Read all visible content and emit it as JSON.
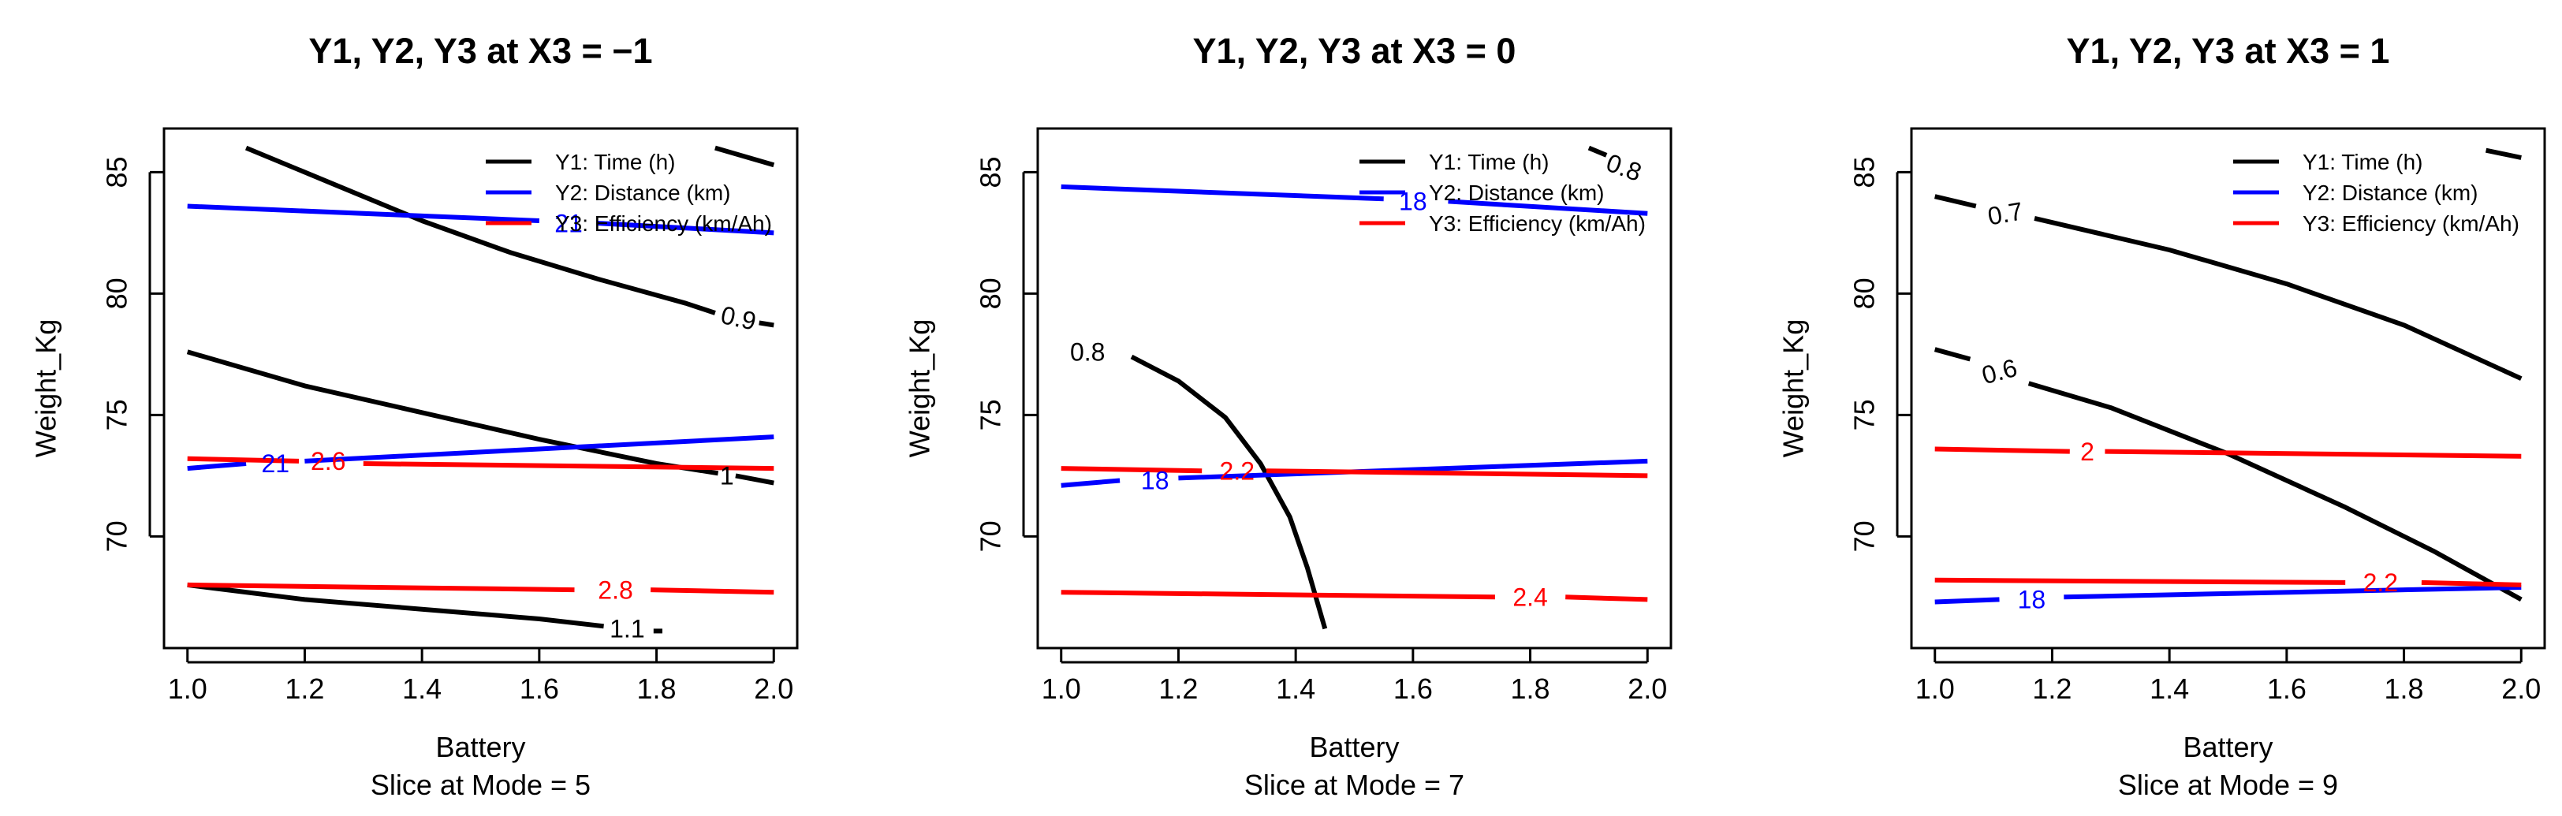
{
  "colors": {
    "y1": "#000000",
    "y2": "#0000ff",
    "y3": "#ff0000"
  },
  "chart_data": [
    {
      "type": "line",
      "title": "Y1, Y2, Y3 at X3 = −1",
      "xlabel": "Battery",
      "subtitle": "Slice at Mode = 5",
      "ylabel": "Weight_Kg",
      "xlim": [
        0.96,
        2.04
      ],
      "ylim": [
        65.4,
        86.8
      ],
      "xticks": [
        "1.0",
        "1.2",
        "1.4",
        "1.6",
        "1.8",
        "2.0"
      ],
      "yticks": [
        "70",
        "75",
        "80",
        "85"
      ],
      "legend": [
        "Y1: Time (h)",
        "Y2: Distance (km)",
        "Y3: Efficiency (km/Ah)"
      ],
      "series": [
        {
          "name": "Y1: Time (h)",
          "color_key": "y1",
          "segments": [
            {
              "points": [
                [
                  1.1,
                  86.0
                ],
                [
                  1.25,
                  84.5
                ],
                [
                  1.4,
                  83.0
                ],
                [
                  1.55,
                  81.7
                ],
                [
                  1.7,
                  80.6
                ],
                [
                  1.85,
                  79.6
                ],
                [
                  1.9,
                  79.2
                ]
              ]
            },
            {
              "points": [
                [
                  1.975,
                  78.8
                ],
                [
                  2.0,
                  78.7
                ]
              ]
            },
            {
              "points": [
                [
                  1.0,
                  77.6
                ],
                [
                  1.2,
                  76.2
                ],
                [
                  1.4,
                  75.1
                ],
                [
                  1.6,
                  74.0
                ],
                [
                  1.8,
                  73.0
                ],
                [
                  1.905,
                  72.6
                ]
              ]
            },
            {
              "points": [
                [
                  1.935,
                  72.5
                ],
                [
                  2.0,
                  72.2
                ]
              ]
            },
            {
              "points": [
                [
                  1.0,
                  68.0
                ],
                [
                  1.2,
                  67.4
                ],
                [
                  1.4,
                  67.0
                ],
                [
                  1.6,
                  66.6
                ],
                [
                  1.71,
                  66.3
                ]
              ]
            },
            {
              "points": [
                [
                  1.795,
                  66.1
                ],
                [
                  1.81,
                  66.1
                ]
              ]
            },
            {
              "points": [
                [
                  1.9,
                  86.0
                ],
                [
                  2.0,
                  85.3
                ]
              ]
            }
          ]
        },
        {
          "name": "Y2: Distance (km)",
          "color_key": "y2",
          "segments": [
            {
              "points": [
                [
                  1.0,
                  83.6
                ],
                [
                  1.5,
                  83.1
                ],
                [
                  1.6,
                  83.0
                ]
              ]
            },
            {
              "points": [
                [
                  1.7,
                  82.9
                ],
                [
                  2.0,
                  82.5
                ]
              ]
            },
            {
              "points": [
                [
                  1.0,
                  72.8
                ],
                [
                  1.1,
                  73.0
                ]
              ]
            },
            {
              "points": [
                [
                  1.2,
                  73.1
                ],
                [
                  1.6,
                  73.6
                ],
                [
                  2.0,
                  74.1
                ]
              ]
            }
          ]
        },
        {
          "name": "Y3: Efficiency (km/Ah)",
          "color_key": "y3",
          "segments": [
            {
              "points": [
                [
                  1.0,
                  73.2
                ],
                [
                  1.19,
                  73.1
                ]
              ]
            },
            {
              "points": [
                [
                  1.3,
                  73.0
                ],
                [
                  2.0,
                  72.8
                ]
              ]
            },
            {
              "points": [
                [
                  1.0,
                  68.0
                ],
                [
                  1.66,
                  67.8
                ]
              ]
            },
            {
              "points": [
                [
                  1.79,
                  67.8
                ],
                [
                  2.0,
                  67.7
                ]
              ]
            }
          ]
        }
      ],
      "contour_labels": [
        {
          "text": "0.9",
          "color_key": "y1",
          "x": 1.94,
          "y": 79.0,
          "angle": 12
        },
        {
          "text": "1",
          "color_key": "y1",
          "x": 1.92,
          "y": 72.5,
          "angle": 0
        },
        {
          "text": "1.1",
          "color_key": "y1",
          "x": 1.75,
          "y": 66.2,
          "angle": 0
        },
        {
          "text": "21",
          "color_key": "y2",
          "x": 1.65,
          "y": 82.9,
          "angle": 0
        },
        {
          "text": "21",
          "color_key": "y2",
          "x": 1.15,
          "y": 73.0,
          "angle": 0
        },
        {
          "text": "2.6",
          "color_key": "y3",
          "x": 1.24,
          "y": 73.1,
          "angle": 0
        },
        {
          "text": "2.8",
          "color_key": "y3",
          "x": 1.73,
          "y": 67.8,
          "angle": 0
        }
      ]
    },
    {
      "type": "line",
      "title": "Y1, Y2, Y3 at X3 = 0",
      "xlabel": "Battery",
      "subtitle": "Slice at Mode = 7",
      "ylabel": "Weight_Kg",
      "xlim": [
        0.96,
        2.04
      ],
      "ylim": [
        65.4,
        86.8
      ],
      "xticks": [
        "1.0",
        "1.2",
        "1.4",
        "1.6",
        "1.8",
        "2.0"
      ],
      "yticks": [
        "70",
        "75",
        "80",
        "85"
      ],
      "legend": [
        "Y1: Time (h)",
        "Y2: Distance (km)",
        "Y3: Efficiency (km/Ah)"
      ],
      "series": [
        {
          "name": "Y1: Time (h)",
          "color_key": "y1",
          "segments": [
            {
              "points": [
                [
                  1.12,
                  77.4
                ],
                [
                  1.2,
                  76.4
                ],
                [
                  1.28,
                  74.9
                ],
                [
                  1.34,
                  73.0
                ],
                [
                  1.39,
                  70.8
                ],
                [
                  1.42,
                  68.7
                ],
                [
                  1.45,
                  66.2
                ]
              ]
            },
            {
              "points": [
                [
                  1.9,
                  86.0
                ],
                [
                  1.93,
                  85.7
                ]
              ]
            }
          ]
        },
        {
          "name": "Y2: Distance (km)",
          "color_key": "y2",
          "segments": [
            {
              "points": [
                [
                  1.0,
                  84.4
                ],
                [
                  1.55,
                  83.9
                ]
              ]
            },
            {
              "points": [
                [
                  1.66,
                  83.8
                ],
                [
                  2.0,
                  83.3
                ]
              ]
            },
            {
              "points": [
                [
                  1.0,
                  72.1
                ],
                [
                  1.1,
                  72.3
                ]
              ]
            },
            {
              "points": [
                [
                  1.2,
                  72.4
                ],
                [
                  2.0,
                  73.1
                ]
              ]
            }
          ]
        },
        {
          "name": "Y3: Efficiency (km/Ah)",
          "color_key": "y3",
          "segments": [
            {
              "points": [
                [
                  1.0,
                  72.8
                ],
                [
                  1.24,
                  72.7
                ]
              ]
            },
            {
              "points": [
                [
                  1.35,
                  72.7
                ],
                [
                  2.0,
                  72.5
                ]
              ]
            },
            {
              "points": [
                [
                  1.0,
                  67.7
                ],
                [
                  1.74,
                  67.5
                ]
              ]
            },
            {
              "points": [
                [
                  1.86,
                  67.5
                ],
                [
                  2.0,
                  67.4
                ]
              ]
            }
          ]
        }
      ],
      "contour_labels": [
        {
          "text": "0.8",
          "color_key": "y1",
          "x": 1.045,
          "y": 77.6,
          "angle": 0
        },
        {
          "text": "0.8",
          "color_key": "y1",
          "x": 1.96,
          "y": 85.2,
          "angle": 20
        },
        {
          "text": "18",
          "color_key": "y2",
          "x": 1.6,
          "y": 83.8,
          "angle": 0
        },
        {
          "text": "18",
          "color_key": "y2",
          "x": 1.16,
          "y": 72.3,
          "angle": 0
        },
        {
          "text": "2.2",
          "color_key": "y3",
          "x": 1.3,
          "y": 72.7,
          "angle": 0
        },
        {
          "text": "2.4",
          "color_key": "y3",
          "x": 1.8,
          "y": 67.5,
          "angle": 0
        }
      ]
    },
    {
      "type": "line",
      "title": "Y1, Y2, Y3 at X3 = 1",
      "xlabel": "Battery",
      "subtitle": "Slice at Mode = 9",
      "ylabel": "Weight_Kg",
      "xlim": [
        0.96,
        2.04
      ],
      "ylim": [
        65.4,
        86.8
      ],
      "xticks": [
        "1.0",
        "1.2",
        "1.4",
        "1.6",
        "1.8",
        "2.0"
      ],
      "yticks": [
        "70",
        "75",
        "80",
        "85"
      ],
      "legend": [
        "Y1: Time (h)",
        "Y2: Distance (km)",
        "Y3: Efficiency (km/Ah)"
      ],
      "series": [
        {
          "name": "Y1: Time (h)",
          "color_key": "y1",
          "segments": [
            {
              "points": [
                [
                  1.0,
                  84.0
                ],
                [
                  1.07,
                  83.6
                ]
              ]
            },
            {
              "points": [
                [
                  1.17,
                  83.1
                ],
                [
                  1.4,
                  81.8
                ],
                [
                  1.6,
                  80.4
                ],
                [
                  1.8,
                  78.7
                ],
                [
                  2.0,
                  76.5
                ]
              ]
            },
            {
              "points": [
                [
                  1.0,
                  77.7
                ],
                [
                  1.06,
                  77.3
                ]
              ]
            },
            {
              "points": [
                [
                  1.16,
                  76.3
                ],
                [
                  1.3,
                  75.3
                ],
                [
                  1.5,
                  73.4
                ],
                [
                  1.7,
                  71.2
                ],
                [
                  1.85,
                  69.4
                ],
                [
                  2.0,
                  67.4
                ]
              ]
            },
            {
              "points": [
                [
                  1.94,
                  85.9
                ],
                [
                  2.0,
                  85.6
                ]
              ]
            }
          ]
        },
        {
          "name": "Y2: Distance (km)",
          "color_key": "y2",
          "segments": [
            {
              "points": [
                [
                  1.0,
                  67.3
                ],
                [
                  1.11,
                  67.4
                ]
              ]
            },
            {
              "points": [
                [
                  1.22,
                  67.5
                ],
                [
                  2.0,
                  67.9
                ]
              ]
            }
          ]
        },
        {
          "name": "Y3: Efficiency (km/Ah)",
          "color_key": "y3",
          "segments": [
            {
              "points": [
                [
                  1.0,
                  73.6
                ],
                [
                  1.23,
                  73.5
                ]
              ]
            },
            {
              "points": [
                [
                  1.29,
                  73.5
                ],
                [
                  2.0,
                  73.3
                ]
              ]
            },
            {
              "points": [
                [
                  1.0,
                  68.2
                ],
                [
                  1.7,
                  68.1
                ]
              ]
            },
            {
              "points": [
                [
                  1.83,
                  68.1
                ],
                [
                  2.0,
                  68.0
                ]
              ]
            }
          ]
        }
      ],
      "contour_labels": [
        {
          "text": "0.7",
          "color_key": "y1",
          "x": 1.12,
          "y": 83.3,
          "angle": -10
        },
        {
          "text": "0.6",
          "color_key": "y1",
          "x": 1.11,
          "y": 76.8,
          "angle": -15
        },
        {
          "text": "2",
          "color_key": "y3",
          "x": 1.26,
          "y": 73.5,
          "angle": 0
        },
        {
          "text": "18",
          "color_key": "y2",
          "x": 1.165,
          "y": 67.4,
          "angle": 0
        },
        {
          "text": "2.2",
          "color_key": "y3",
          "x": 1.76,
          "y": 68.1,
          "angle": 0
        }
      ]
    }
  ]
}
